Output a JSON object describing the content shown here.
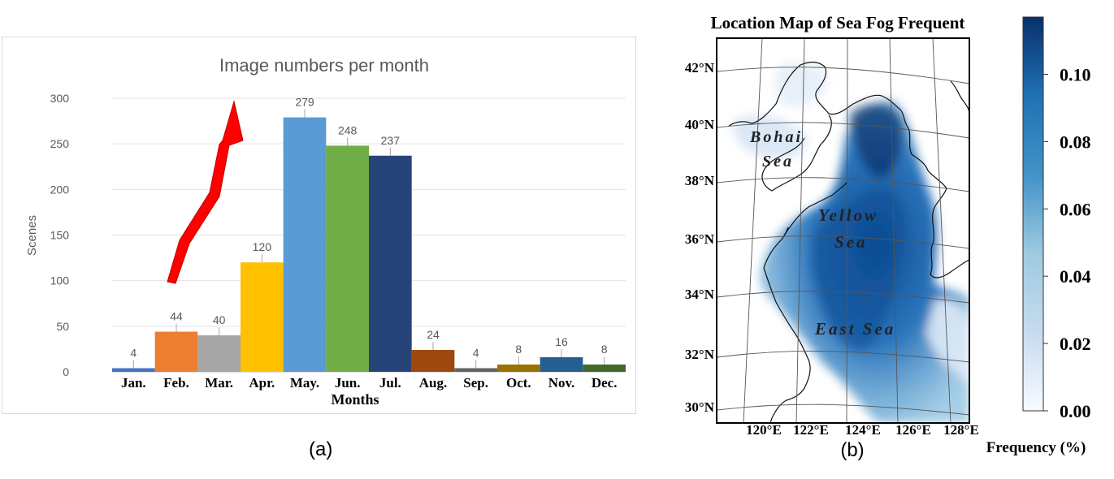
{
  "panels": {
    "left_label": "(a)",
    "right_label": "(b)"
  },
  "chart_data": [
    {
      "type": "bar",
      "title": "Image numbers per month",
      "xlabel": "Months",
      "ylabel": "Scenes",
      "ylim": [
        0,
        300
      ],
      "yticks": [
        0,
        50,
        100,
        150,
        200,
        250,
        300
      ],
      "grid": true,
      "categories": [
        "Jan.",
        "Feb.",
        "Mar.",
        "Apr.",
        "May.",
        "Jun.",
        "Jul.",
        "Aug.",
        "Sep.",
        "Oct.",
        "Nov.",
        "Dec."
      ],
      "values": [
        4,
        44,
        40,
        120,
        279,
        248,
        237,
        24,
        4,
        8,
        16,
        8
      ],
      "colors": [
        "#4472c4",
        "#ed7d31",
        "#a5a5a5",
        "#ffc000",
        "#5b9bd5",
        "#70ad47",
        "#264478",
        "#9e480e",
        "#636363",
        "#997300",
        "#255e91",
        "#43682b"
      ],
      "annotation": {
        "type": "arrow",
        "color": "#ff0000",
        "direction": "increasing trend"
      }
    },
    {
      "type": "heatmap",
      "title": "Location Map of Sea Fog Frequent",
      "xticks": [
        "120°E",
        "122°E",
        "124°E",
        "126°E",
        "128°E"
      ],
      "yticks": [
        "30°N",
        "32°N",
        "34°N",
        "36°N",
        "38°N",
        "40°N",
        "42°N"
      ],
      "region_labels": [
        "Bohai",
        "Sea",
        "Yellow",
        "Sea",
        "East Sea"
      ],
      "colorbar": {
        "label": "Frequency (%)",
        "ticks": [
          "0.00",
          "0.02",
          "0.04",
          "0.06",
          "0.08",
          "0.10"
        ],
        "range": [
          0,
          0.117
        ],
        "color_low": "#f7fbff",
        "color_high": "#08306b"
      }
    }
  ]
}
